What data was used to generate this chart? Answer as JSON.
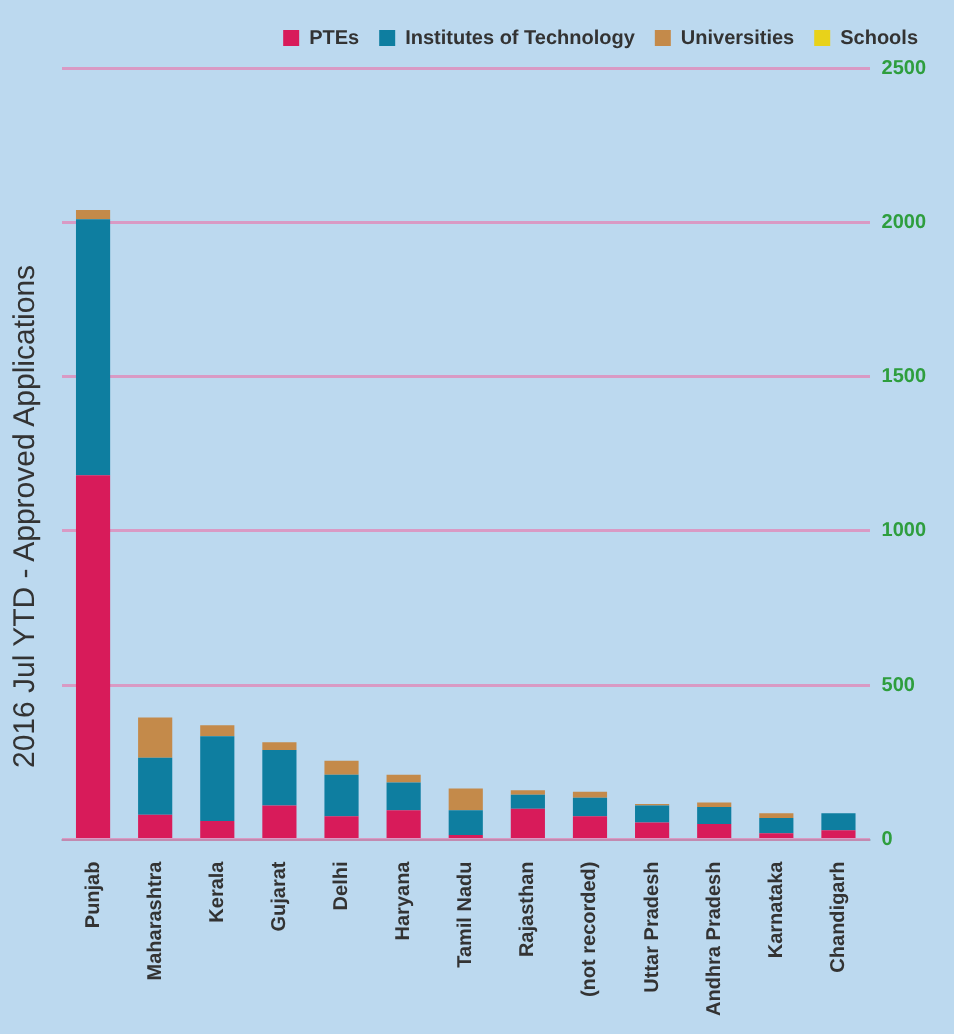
{
  "chart_data": {
    "type": "bar",
    "title": "2016 Jul YTD - Approved Applications",
    "stacked": true,
    "grid": "y",
    "legend": "top right",
    "categories": [
      "Punjab",
      "Maharashtra",
      "Kerala",
      "Gujarat",
      "Delhi",
      "Haryana",
      "Tamil Nadu",
      "Rajasthan",
      "(not recorded)",
      "Uttar Pradesh",
      "Andhra Pradesh",
      "Karnataka",
      "Chandigarh"
    ],
    "series": [
      {
        "name": "PTEs",
        "color": "#d81b5a",
        "values": [
          1180,
          80,
          60,
          110,
          75,
          95,
          15,
          100,
          75,
          55,
          50,
          20,
          30
        ]
      },
      {
        "name": "Institutes of Technology",
        "color": "#0e7ea0",
        "values": [
          830,
          185,
          275,
          180,
          135,
          90,
          80,
          45,
          60,
          55,
          55,
          50,
          55
        ]
      },
      {
        "name": "Universities",
        "color": "#c48a4a",
        "values": [
          30,
          130,
          35,
          25,
          45,
          25,
          70,
          15,
          20,
          5,
          15,
          15,
          0
        ]
      },
      {
        "name": "Schools",
        "color": "#e8d21a",
        "values": [
          0,
          0,
          0,
          0,
          0,
          0,
          0,
          0,
          0,
          0,
          0,
          0,
          0
        ]
      }
    ],
    "ylim": [
      0,
      2500
    ],
    "yticks": [
      0,
      500,
      1000,
      1500,
      2000,
      2500
    ]
  }
}
